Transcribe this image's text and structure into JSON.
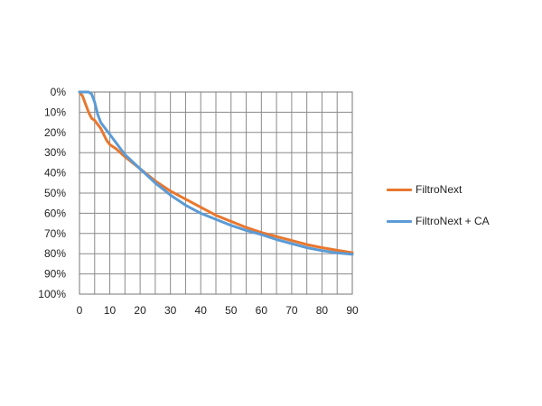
{
  "chart_data": {
    "type": "line",
    "title": "",
    "xlabel": "",
    "ylabel": "",
    "x_ticks": [
      "0",
      "10",
      "20",
      "30",
      "40",
      "50",
      "60",
      "70",
      "80",
      "90"
    ],
    "y_ticks": [
      "0%",
      "10%",
      "20%",
      "30%",
      "40%",
      "50%",
      "60%",
      "70%",
      "80%",
      "90%",
      "100%"
    ],
    "xlim": [
      0,
      90
    ],
    "ylim": [
      0,
      100
    ],
    "y_axis_inverted": true,
    "grid": true,
    "x_grid_step": 5,
    "legend_position": "right",
    "series": [
      {
        "name": "FiltroNext",
        "color": "#E8772E",
        "x": [
          0,
          1,
          2,
          3,
          4,
          5,
          6,
          7,
          8,
          9,
          10,
          12,
          15,
          20,
          25,
          30,
          35,
          40,
          45,
          50,
          55,
          60,
          65,
          70,
          75,
          80,
          85,
          90
        ],
        "y": [
          0,
          2,
          6,
          10,
          13,
          14,
          16,
          18,
          21,
          24,
          26,
          28,
          32,
          38,
          44,
          49,
          53,
          57,
          61,
          64,
          67,
          69.5,
          71.5,
          73.5,
          75.5,
          77,
          78.3,
          79.5
        ]
      },
      {
        "name": "FiltroNext + CA",
        "color": "#5B9BD5",
        "x": [
          0,
          1,
          2,
          3,
          4,
          5,
          6,
          7,
          8,
          9,
          10,
          12,
          15,
          20,
          25,
          30,
          35,
          40,
          45,
          50,
          55,
          60,
          65,
          70,
          75,
          80,
          85,
          90
        ],
        "y": [
          0,
          0,
          0,
          0,
          1,
          5,
          11,
          15,
          17,
          19,
          21,
          25,
          31,
          38,
          45,
          51,
          56,
          60,
          63,
          66,
          68.5,
          70.5,
          73,
          75,
          77,
          78.5,
          79.6,
          80.3
        ]
      }
    ]
  }
}
